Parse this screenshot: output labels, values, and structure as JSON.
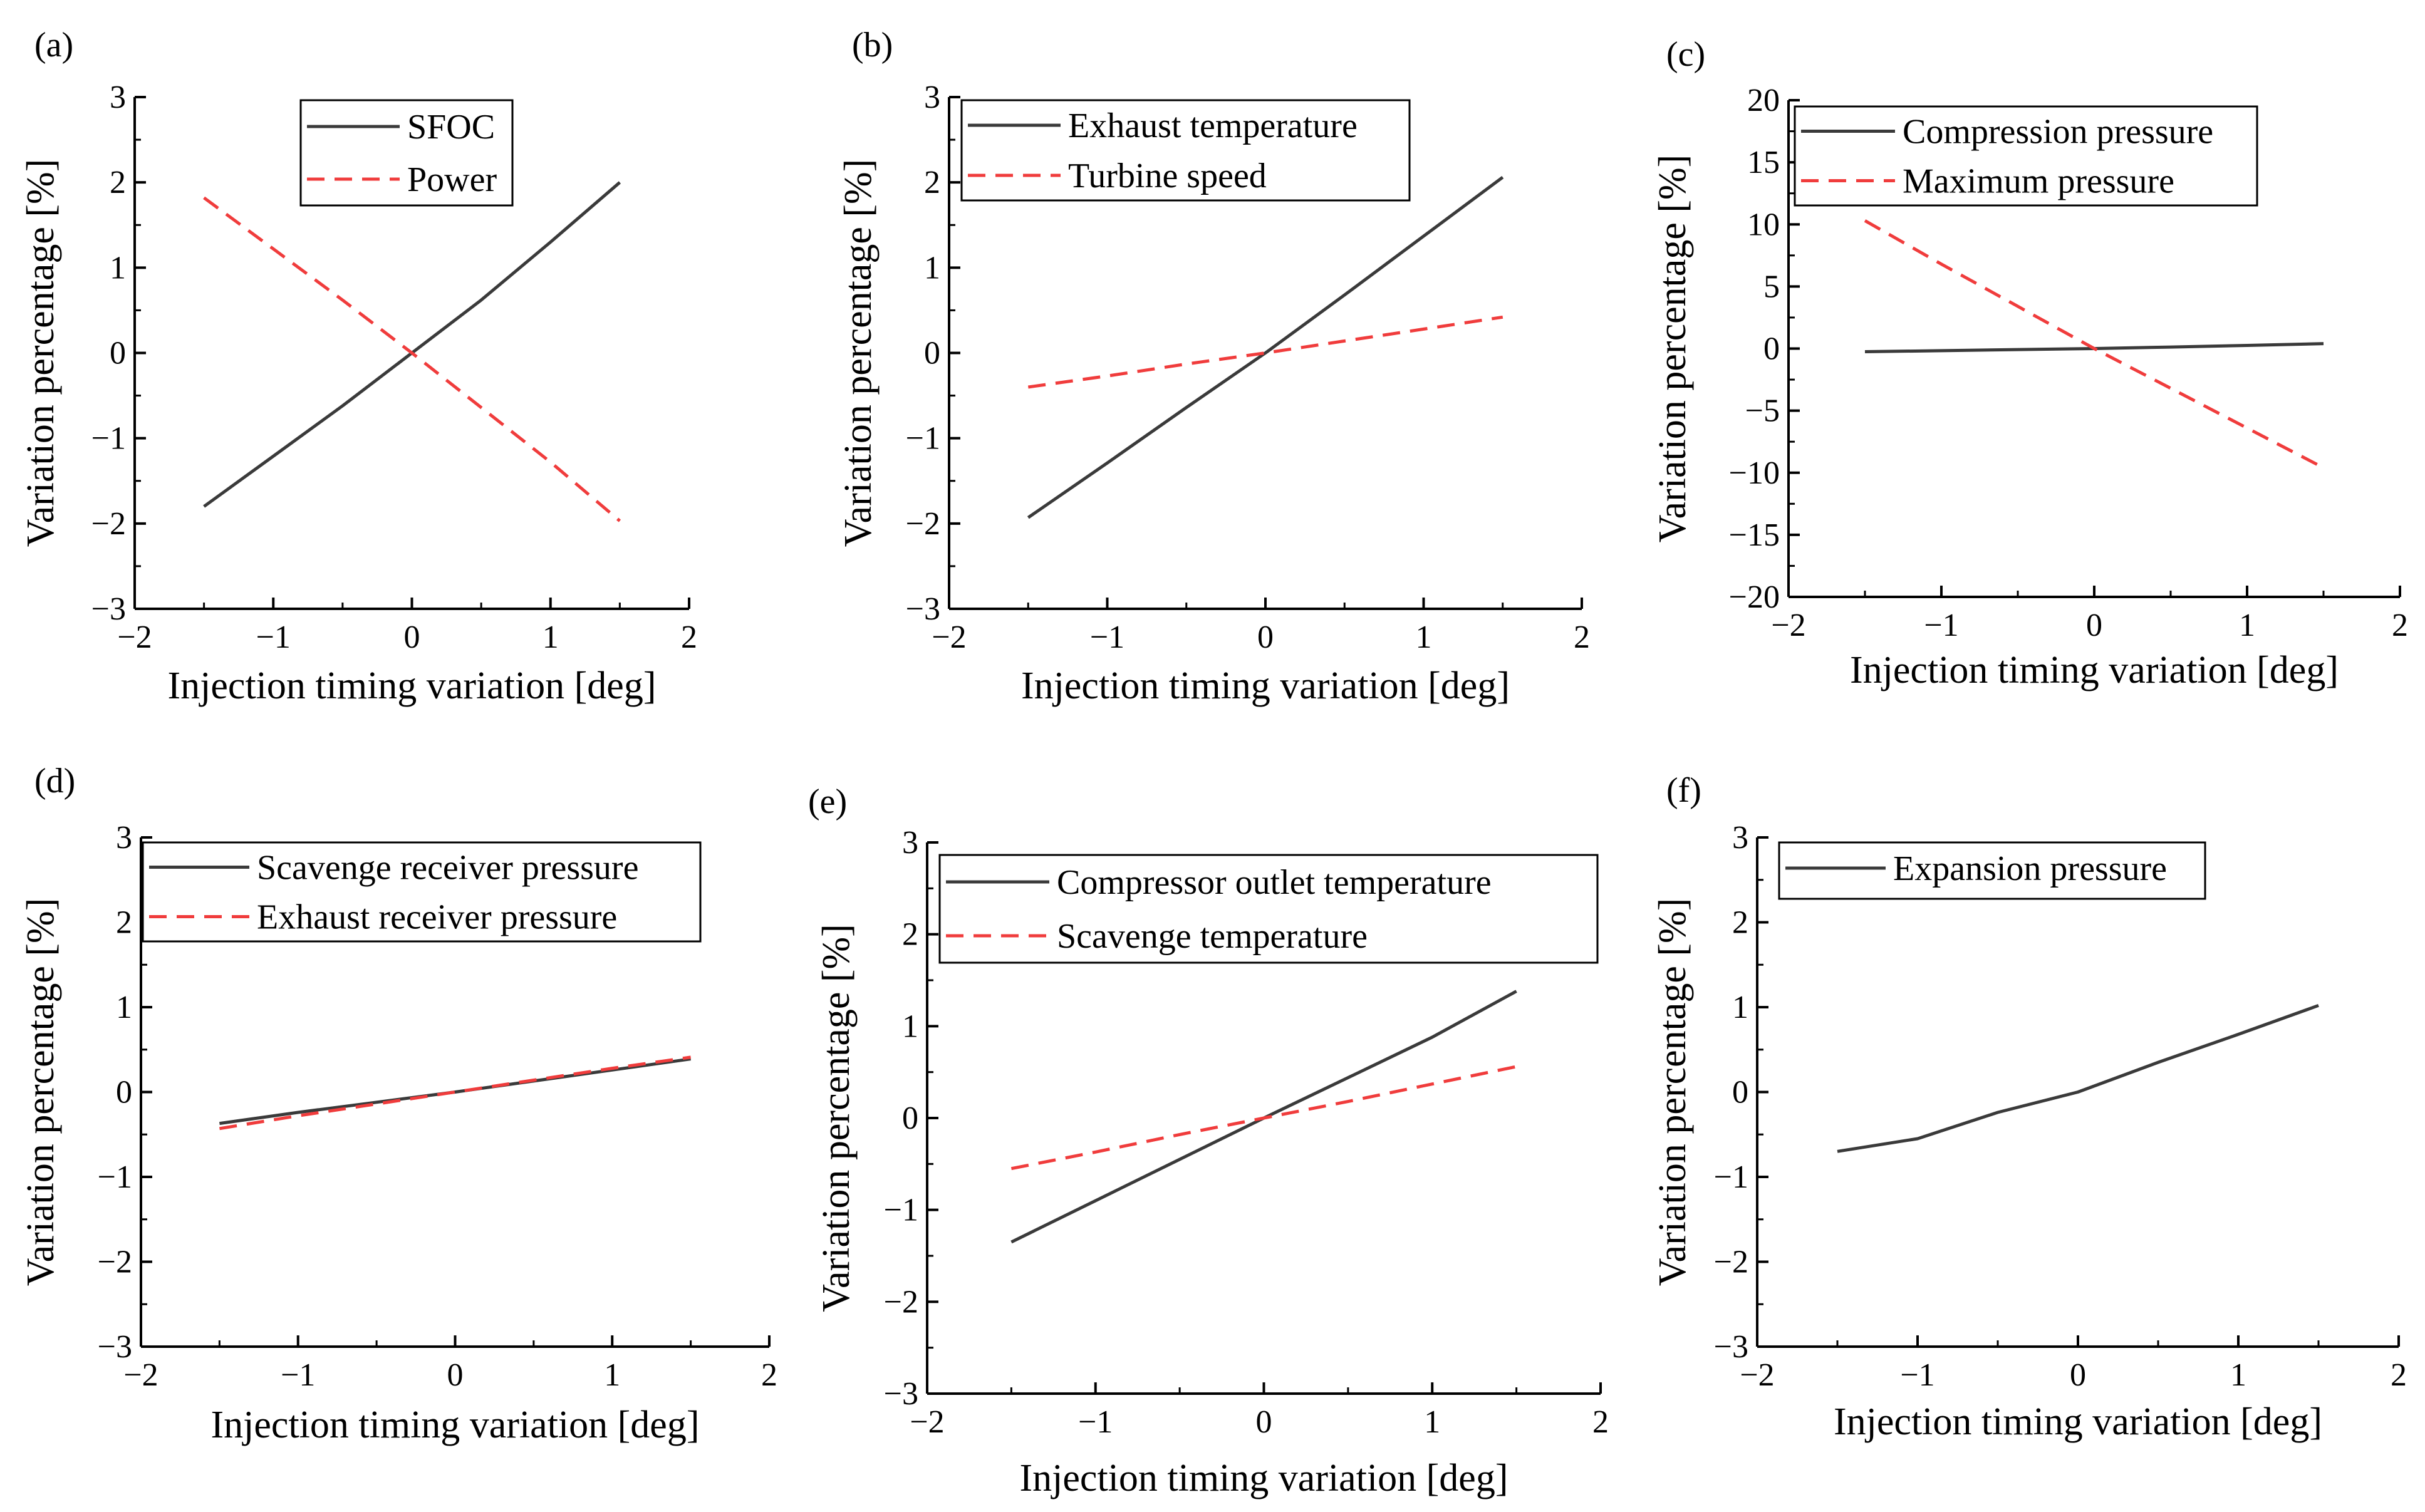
{
  "colors": {
    "solid_series": "#3a3a3a",
    "dashed_series": "#f03c3c",
    "axis": "#000000"
  },
  "chart_data": [
    {
      "panel": "(a)",
      "type": "line",
      "xlabel": "Injection timing variation [deg]",
      "ylabel": "Variation percentage [%]",
      "xlim": [
        -2,
        2
      ],
      "ylim": [
        -3,
        3
      ],
      "xticks": [
        -2,
        -1,
        0,
        1,
        2
      ],
      "yticks": [
        -3,
        -2,
        -1,
        0,
        1,
        2,
        3
      ],
      "xtick_labels": [
        "−2",
        "−1",
        "0",
        "1",
        "2"
      ],
      "ytick_labels": [
        "−3",
        "−2",
        "−1",
        "0",
        "1",
        "2",
        "3"
      ],
      "legend": "top-center",
      "grid": false,
      "series": [
        {
          "name": "SFOC",
          "style": "solid",
          "x": [
            -1.5,
            -1,
            -0.5,
            0,
            0.5,
            1,
            1.5
          ],
          "y": [
            -1.8,
            -1.21,
            -0.62,
            0,
            0.62,
            1.3,
            2.0
          ]
        },
        {
          "name": "Power",
          "style": "dashed",
          "x": [
            -1.5,
            -1,
            -0.5,
            0,
            0.5,
            1,
            1.5
          ],
          "y": [
            1.82,
            1.22,
            0.62,
            0,
            -0.64,
            -1.28,
            -1.97
          ]
        }
      ]
    },
    {
      "panel": "(b)",
      "type": "line",
      "xlabel": "Injection timing variation [deg]",
      "ylabel": "Variation percentage [%]",
      "xlim": [
        -2,
        2
      ],
      "ylim": [
        -3,
        3
      ],
      "xticks": [
        -2,
        -1,
        0,
        1,
        2
      ],
      "yticks": [
        -3,
        -2,
        -1,
        0,
        1,
        2,
        3
      ],
      "xtick_labels": [
        "−2",
        "−1",
        "0",
        "1",
        "2"
      ],
      "ytick_labels": [
        "−3",
        "−2",
        "−1",
        "0",
        "1",
        "2",
        "3"
      ],
      "legend": "top-left",
      "grid": false,
      "series": [
        {
          "name": "Exhaust temperature",
          "style": "solid",
          "x": [
            -1.5,
            -1,
            -0.5,
            0,
            0.5,
            1,
            1.5
          ],
          "y": [
            -1.93,
            -1.29,
            -0.64,
            0,
            0.68,
            1.37,
            2.06
          ]
        },
        {
          "name": "Turbine speed",
          "style": "dashed",
          "x": [
            -1.5,
            -1,
            -0.5,
            0,
            0.5,
            1,
            1.5
          ],
          "y": [
            -0.4,
            -0.27,
            -0.13,
            0,
            0.14,
            0.28,
            0.42
          ]
        }
      ]
    },
    {
      "panel": "(c)",
      "type": "line",
      "xlabel": "Injection timing variation [deg]",
      "ylabel": "Variation percentage [%]",
      "xlim": [
        -2,
        2
      ],
      "ylim": [
        -20,
        20
      ],
      "xticks": [
        -2,
        -1,
        0,
        1,
        2
      ],
      "yticks": [
        -20,
        -15,
        -10,
        -5,
        0,
        5,
        10,
        15,
        20
      ],
      "xtick_labels": [
        "−2",
        "−1",
        "0",
        "1",
        "2"
      ],
      "ytick_labels": [
        "−20",
        "−15",
        "−10",
        "−5",
        "0",
        "5",
        "10",
        "15",
        "20"
      ],
      "legend": "top-left",
      "grid": false,
      "series": [
        {
          "name": "Compression pressure",
          "style": "solid",
          "x": [
            -1.5,
            -1,
            -0.5,
            0,
            0.5,
            1,
            1.5
          ],
          "y": [
            -0.25,
            -0.17,
            -0.08,
            0,
            0.12,
            0.25,
            0.4
          ]
        },
        {
          "name": "Maximum pressure",
          "style": "dashed",
          "x": [
            -1.5,
            -1,
            -0.5,
            0,
            0.5,
            1,
            1.5
          ],
          "y": [
            10.3,
            6.8,
            3.4,
            0,
            -3.2,
            -6.4,
            -9.6
          ]
        }
      ]
    },
    {
      "panel": "(d)",
      "type": "line",
      "xlabel": "Injection timing variation [deg]",
      "ylabel": "Variation percentage [%]",
      "xlim": [
        -2,
        2
      ],
      "ylim": [
        -3,
        3
      ],
      "xticks": [
        -2,
        -1,
        0,
        1,
        2
      ],
      "yticks": [
        -3,
        -2,
        -1,
        0,
        1,
        2,
        3
      ],
      "xtick_labels": [
        "−2",
        "−1",
        "0",
        "1",
        "2"
      ],
      "ytick_labels": [
        "−3",
        "−2",
        "−1",
        "0",
        "1",
        "2",
        "3"
      ],
      "legend": "top-left",
      "grid": false,
      "series": [
        {
          "name": "Scavenge receiver pressure",
          "style": "solid",
          "x": [
            -1.5,
            -1,
            -0.5,
            0,
            0.5,
            1,
            1.5
          ],
          "y": [
            -0.37,
            -0.24,
            -0.12,
            0,
            0.13,
            0.26,
            0.39
          ]
        },
        {
          "name": "Exhaust receiver pressure",
          "style": "dashed",
          "x": [
            -1.5,
            -1,
            -0.5,
            0,
            0.5,
            1,
            1.5
          ],
          "y": [
            -0.43,
            -0.28,
            -0.14,
            0,
            0.14,
            0.28,
            0.41
          ]
        }
      ]
    },
    {
      "panel": "(e)",
      "type": "line",
      "xlabel": "Injection timing variation [deg]",
      "ylabel": "Variation percentage [%]",
      "xlim": [
        -2,
        2
      ],
      "ylim": [
        -3,
        3
      ],
      "xticks": [
        -2,
        -1,
        0,
        1,
        2
      ],
      "yticks": [
        -3,
        -2,
        -1,
        0,
        1,
        2,
        3
      ],
      "xtick_labels": [
        "−2",
        "−1",
        "0",
        "1",
        "2"
      ],
      "ytick_labels": [
        "−3",
        "−2",
        "−1",
        "0",
        "1",
        "2",
        "3"
      ],
      "legend": "top-left",
      "grid": false,
      "series": [
        {
          "name": "Compressor outlet temperature",
          "style": "solid",
          "x": [
            -1.5,
            -1,
            -0.5,
            0,
            0.5,
            1,
            1.5
          ],
          "y": [
            -1.35,
            -0.9,
            -0.45,
            0,
            0.44,
            0.88,
            1.38
          ]
        },
        {
          "name": "Scavenge temperature",
          "style": "dashed",
          "x": [
            -1.5,
            -1,
            -0.5,
            0,
            0.5,
            1,
            1.5
          ],
          "y": [
            -0.55,
            -0.37,
            -0.18,
            0,
            0.18,
            0.37,
            0.56
          ]
        }
      ]
    },
    {
      "panel": "(f)",
      "type": "line",
      "xlabel": "Injection timing variation [deg]",
      "ylabel": "Variation percentage [%]",
      "xlim": [
        -2,
        2
      ],
      "ylim": [
        -3,
        3
      ],
      "xticks": [
        -2,
        -1,
        0,
        1,
        2
      ],
      "yticks": [
        -3,
        -2,
        -1,
        0,
        1,
        2,
        3
      ],
      "xtick_labels": [
        "−2",
        "−1",
        "0",
        "1",
        "2"
      ],
      "ytick_labels": [
        "−3",
        "−2",
        "−1",
        "0",
        "1",
        "2",
        "3"
      ],
      "legend": "top-left",
      "grid": false,
      "series": [
        {
          "name": "Expansion pressure",
          "style": "solid",
          "x": [
            -1.5,
            -1,
            -0.5,
            0,
            0.5,
            1,
            1.5
          ],
          "y": [
            -0.7,
            -0.55,
            -0.24,
            0,
            0.35,
            0.68,
            1.02
          ]
        }
      ]
    }
  ]
}
